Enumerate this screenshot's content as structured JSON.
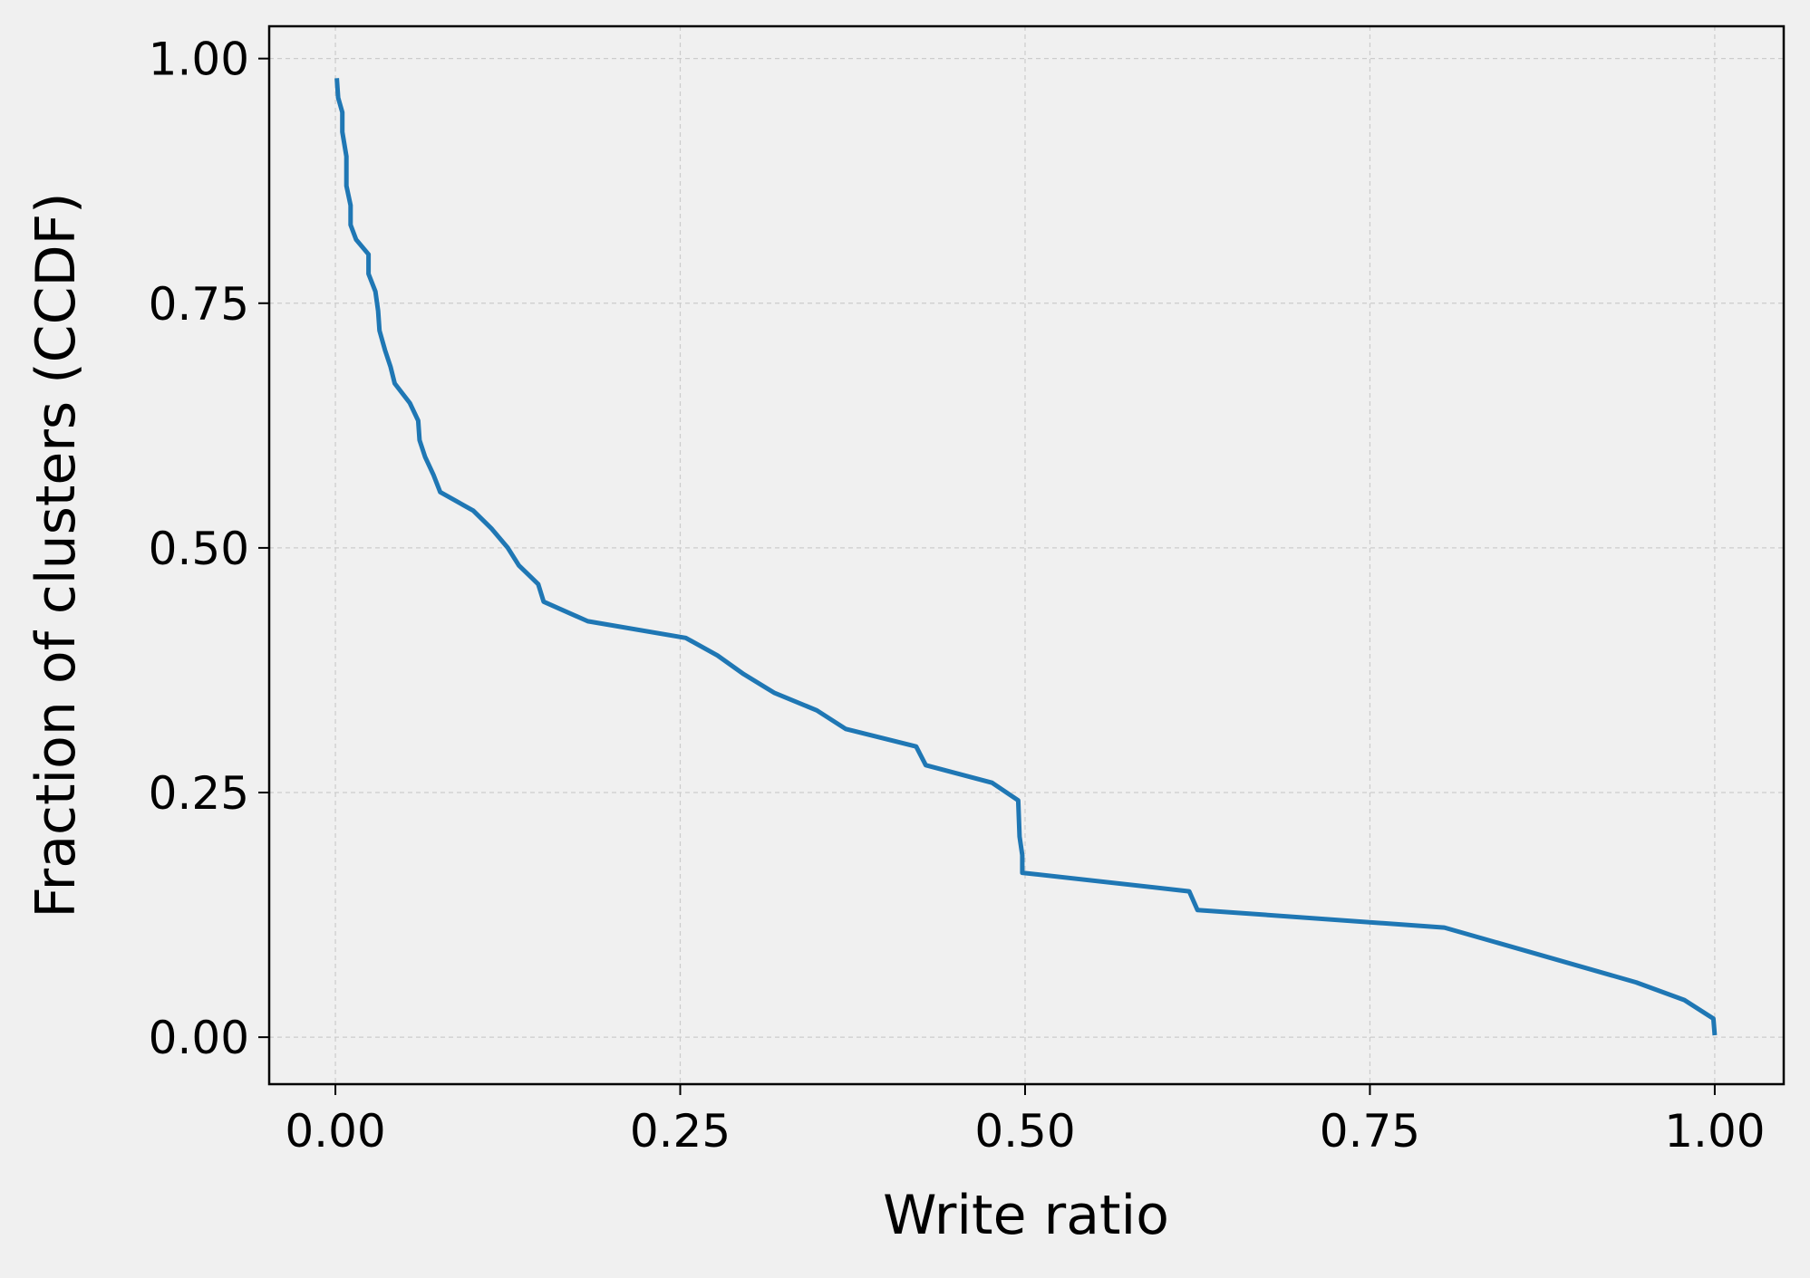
{
  "chart_data": {
    "type": "line",
    "title": "",
    "xlabel": "Write ratio",
    "ylabel": "Fraction of clusters (CCDF)",
    "xlim": [
      -0.048,
      1.05
    ],
    "ylim": [
      -0.048,
      1.033
    ],
    "grid": true,
    "xticks": [
      0.0,
      0.25,
      0.5,
      0.75,
      1.0
    ],
    "xtick_labels": [
      "0.00",
      "0.25",
      "0.50",
      "0.75",
      "1.00"
    ],
    "yticks": [
      0.0,
      0.25,
      0.5,
      0.75,
      1.0
    ],
    "ytick_labels": [
      "0.00",
      "0.25",
      "0.50",
      "0.75",
      "1.00"
    ],
    "series": [
      {
        "color": "#1f77b4",
        "points": [
          [
            0.001,
            0.98
          ],
          [
            0.002,
            0.96
          ],
          [
            0.005,
            0.945
          ],
          [
            0.005,
            0.925
          ],
          [
            0.008,
            0.9
          ],
          [
            0.008,
            0.87
          ],
          [
            0.011,
            0.85
          ],
          [
            0.011,
            0.83
          ],
          [
            0.015,
            0.815
          ],
          [
            0.024,
            0.8
          ],
          [
            0.024,
            0.78
          ],
          [
            0.029,
            0.762
          ],
          [
            0.031,
            0.742
          ],
          [
            0.032,
            0.722
          ],
          [
            0.036,
            0.702
          ],
          [
            0.04,
            0.685
          ],
          [
            0.043,
            0.668
          ],
          [
            0.054,
            0.648
          ],
          [
            0.06,
            0.63
          ],
          [
            0.061,
            0.61
          ],
          [
            0.065,
            0.593
          ],
          [
            0.071,
            0.575
          ],
          [
            0.076,
            0.557
          ],
          [
            0.1,
            0.538
          ],
          [
            0.113,
            0.52
          ],
          [
            0.125,
            0.5
          ],
          [
            0.133,
            0.482
          ],
          [
            0.147,
            0.463
          ],
          [
            0.151,
            0.445
          ],
          [
            0.183,
            0.425
          ],
          [
            0.254,
            0.408
          ],
          [
            0.277,
            0.39
          ],
          [
            0.296,
            0.371
          ],
          [
            0.318,
            0.352
          ],
          [
            0.349,
            0.334
          ],
          [
            0.37,
            0.315
          ],
          [
            0.421,
            0.297
          ],
          [
            0.428,
            0.278
          ],
          [
            0.476,
            0.26
          ],
          [
            0.495,
            0.242
          ],
          [
            0.496,
            0.205
          ],
          [
            0.498,
            0.186
          ],
          [
            0.498,
            0.168
          ],
          [
            0.619,
            0.149
          ],
          [
            0.625,
            0.13
          ],
          [
            0.804,
            0.112
          ],
          [
            0.943,
            0.056
          ],
          [
            0.978,
            0.038
          ],
          [
            0.999,
            0.019
          ],
          [
            1.0,
            0.002
          ]
        ]
      }
    ]
  }
}
